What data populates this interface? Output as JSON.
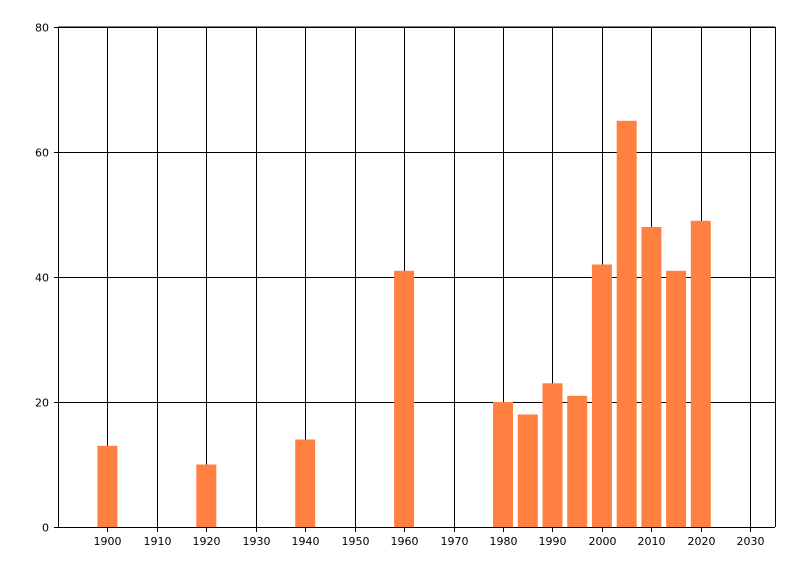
{
  "chart_data": {
    "type": "bar",
    "x": [
      1900,
      1920,
      1940,
      1960,
      1980,
      1985,
      1990,
      1995,
      2000,
      2005,
      2010,
      2015,
      2020
    ],
    "values": [
      13,
      10,
      14,
      41,
      20,
      18,
      23,
      21,
      42,
      65,
      48,
      41,
      49
    ],
    "title": "",
    "xlabel": "",
    "ylabel": "",
    "xlim": [
      1890,
      2035
    ],
    "ylim": [
      0,
      80
    ],
    "x_ticks": [
      "1900",
      "1910",
      "1920",
      "1930",
      "1940",
      "1950",
      "1960",
      "1970",
      "1980",
      "1990",
      "2000",
      "2010",
      "2020",
      "2030"
    ],
    "y_ticks": [
      "0",
      "20",
      "40",
      "60",
      "80"
    ],
    "grid": "on",
    "legend": "none",
    "bar_color": "#FF8040"
  }
}
